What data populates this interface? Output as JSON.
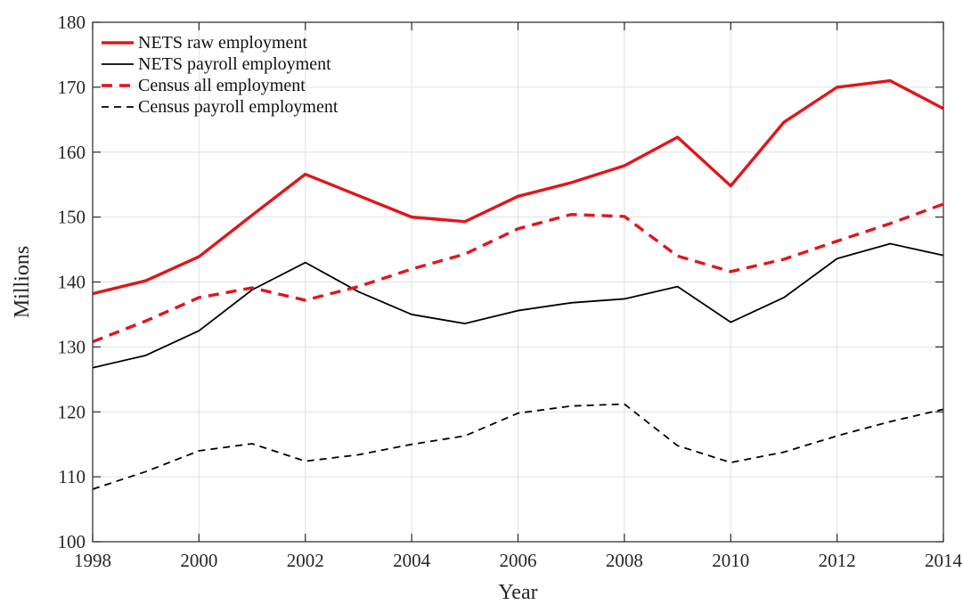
{
  "chart_data": {
    "type": "line",
    "title": "",
    "xlabel": "Year",
    "ylabel": "Millions",
    "xlim": [
      1998,
      2014
    ],
    "ylim": [
      100,
      180
    ],
    "xticks": [
      1998,
      2000,
      2002,
      2004,
      2006,
      2008,
      2010,
      2012,
      2014
    ],
    "yticks": [
      100,
      110,
      120,
      130,
      140,
      150,
      160,
      170,
      180
    ],
    "grid": true,
    "legend": "top-left",
    "x": [
      1998,
      1999,
      2000,
      2001,
      2002,
      2003,
      2004,
      2005,
      2006,
      2007,
      2008,
      2009,
      2010,
      2011,
      2012,
      2013,
      2014
    ],
    "series": [
      {
        "name": "NETS raw employment",
        "color": "#e0161b",
        "dash": "solid",
        "weight": "thick",
        "values": [
          138.2,
          140.2,
          143.9,
          150.3,
          156.6,
          153.3,
          150.0,
          149.3,
          153.2,
          155.3,
          157.9,
          162.3,
          154.8,
          164.6,
          170.0,
          171.0,
          166.7
        ]
      },
      {
        "name": "NETS payroll employment",
        "color": "#000000",
        "dash": "solid",
        "weight": "thin",
        "values": [
          126.8,
          128.7,
          132.5,
          138.8,
          143.0,
          138.5,
          135.0,
          133.6,
          135.6,
          136.8,
          137.4,
          139.3,
          133.8,
          137.6,
          143.6,
          145.9,
          144.1
        ]
      },
      {
        "name": "Census all employment",
        "color": "#e0161b",
        "dash": "dashed",
        "weight": "thick",
        "values": [
          130.8,
          134.0,
          137.6,
          139.1,
          137.2,
          139.3,
          142.0,
          144.3,
          148.2,
          150.4,
          150.1,
          144.0,
          141.6,
          143.5,
          146.3,
          149.0,
          152.0
        ]
      },
      {
        "name": "Census payroll employment",
        "color": "#000000",
        "dash": "dashed",
        "weight": "thin",
        "values": [
          108.1,
          110.8,
          114.0,
          115.1,
          112.4,
          113.4,
          115.0,
          116.3,
          119.8,
          120.9,
          121.2,
          114.8,
          112.2,
          113.8,
          116.3,
          118.5,
          120.4
        ]
      }
    ]
  }
}
